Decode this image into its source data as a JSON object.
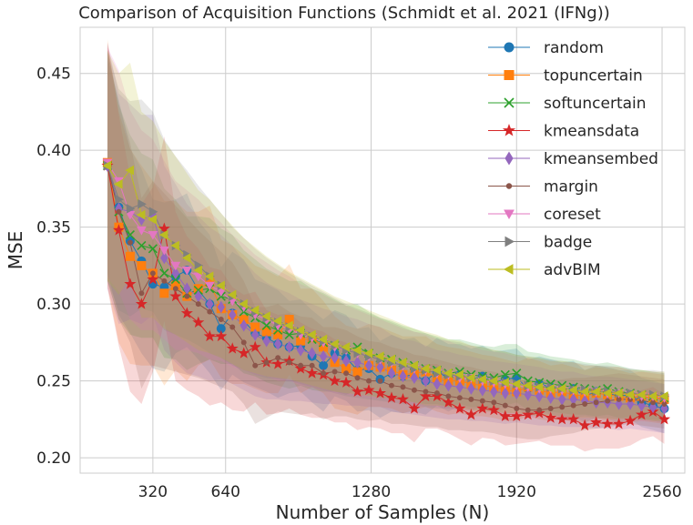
{
  "chart_data": {
    "type": "line",
    "title": "Comparison of Acquisition Functions (Schmidt et al. 2021 (IFNg))",
    "xlabel": "Number of Samples (N)",
    "ylabel": "MSE",
    "xlim": [
      0,
      2660
    ],
    "ylim": [
      0.19,
      0.48
    ],
    "xticks": [
      320,
      640,
      1280,
      1920,
      2560
    ],
    "xtick_labels": [
      "320",
      "640",
      "1280",
      "1920",
      "2560"
    ],
    "yticks": [
      0.2,
      0.25,
      0.3,
      0.35,
      0.4,
      0.45
    ],
    "ytick_labels": [
      "0.20",
      "0.25",
      "0.30",
      "0.35",
      "0.40",
      "0.45"
    ],
    "grid": true,
    "legend_position": "top-right",
    "x": [
      120,
      170,
      220,
      270,
      320,
      370,
      420,
      470,
      520,
      570,
      620,
      670,
      720,
      770,
      820,
      870,
      920,
      970,
      1020,
      1070,
      1120,
      1170,
      1220,
      1270,
      1320,
      1370,
      1420,
      1470,
      1520,
      1570,
      1620,
      1670,
      1720,
      1770,
      1820,
      1870,
      1920,
      1970,
      2020,
      2070,
      2120,
      2170,
      2220,
      2270,
      2320,
      2370,
      2420,
      2470,
      2520,
      2570
    ],
    "series": [
      {
        "name": "random",
        "color": "#1f77b4",
        "marker": "circle",
        "values": [
          0.39,
          0.363,
          0.341,
          0.328,
          0.313,
          0.311,
          0.318,
          0.322,
          0.309,
          0.3,
          0.284,
          0.294,
          0.289,
          0.281,
          0.278,
          0.274,
          0.272,
          0.273,
          0.266,
          0.26,
          0.268,
          0.265,
          0.257,
          0.258,
          0.251,
          0.255,
          0.253,
          0.254,
          0.25,
          0.256,
          0.252,
          0.254,
          0.251,
          0.253,
          0.249,
          0.251,
          0.252,
          0.245,
          0.248,
          0.246,
          0.244,
          0.245,
          0.24,
          0.243,
          0.242,
          0.24,
          0.241,
          0.236,
          0.234,
          0.232
        ],
        "band": [
          0.07,
          0.07,
          0.06,
          0.06,
          0.055,
          0.055,
          0.05,
          0.05,
          0.045,
          0.045,
          0.04,
          0.04,
          0.04,
          0.035,
          0.035,
          0.035,
          0.03,
          0.03,
          0.03,
          0.03,
          0.028,
          0.028,
          0.027,
          0.027,
          0.025,
          0.025,
          0.024,
          0.024,
          0.022,
          0.022,
          0.022,
          0.02,
          0.02,
          0.02,
          0.02,
          0.019,
          0.019,
          0.019,
          0.018,
          0.018,
          0.018,
          0.018,
          0.017,
          0.017,
          0.017,
          0.017,
          0.016,
          0.016,
          0.016,
          0.016
        ]
      },
      {
        "name": "topuncertain",
        "color": "#ff7f0e",
        "marker": "square",
        "values": [
          0.392,
          0.35,
          0.331,
          0.325,
          0.32,
          0.307,
          0.312,
          0.305,
          0.31,
          0.314,
          0.297,
          0.293,
          0.29,
          0.285,
          0.282,
          0.28,
          0.29,
          0.276,
          0.278,
          0.272,
          0.262,
          0.258,
          0.256,
          0.26,
          0.259,
          0.257,
          0.254,
          0.255,
          0.256,
          0.252,
          0.25,
          0.25,
          0.248,
          0.247,
          0.246,
          0.244,
          0.243,
          0.246,
          0.244,
          0.242,
          0.243,
          0.241,
          0.24,
          0.242,
          0.241,
          0.24,
          0.239,
          0.24,
          0.239,
          0.238
        ],
        "band": [
          0.08,
          0.075,
          0.07,
          0.065,
          0.06,
          0.06,
          0.055,
          0.055,
          0.05,
          0.05,
          0.045,
          0.045,
          0.042,
          0.04,
          0.04,
          0.038,
          0.036,
          0.034,
          0.032,
          0.03,
          0.03,
          0.028,
          0.028,
          0.027,
          0.026,
          0.025,
          0.025,
          0.024,
          0.023,
          0.022,
          0.022,
          0.021,
          0.021,
          0.02,
          0.02,
          0.02,
          0.019,
          0.019,
          0.019,
          0.018,
          0.018,
          0.018,
          0.017,
          0.017,
          0.017,
          0.017,
          0.016,
          0.016,
          0.016,
          0.016
        ]
      },
      {
        "name": "softuncertain",
        "color": "#2ca02c",
        "marker": "x",
        "values": [
          0.39,
          0.36,
          0.345,
          0.338,
          0.336,
          0.32,
          0.316,
          0.307,
          0.309,
          0.31,
          0.305,
          0.303,
          0.295,
          0.291,
          0.286,
          0.283,
          0.28,
          0.281,
          0.277,
          0.275,
          0.273,
          0.27,
          0.272,
          0.268,
          0.265,
          0.264,
          0.262,
          0.26,
          0.258,
          0.257,
          0.255,
          0.256,
          0.254,
          0.253,
          0.252,
          0.254,
          0.255,
          0.25,
          0.249,
          0.248,
          0.247,
          0.246,
          0.245,
          0.244,
          0.245,
          0.243,
          0.242,
          0.241,
          0.24,
          0.239
        ],
        "band": [
          0.075,
          0.07,
          0.065,
          0.06,
          0.058,
          0.055,
          0.052,
          0.05,
          0.048,
          0.046,
          0.044,
          0.042,
          0.04,
          0.038,
          0.037,
          0.036,
          0.035,
          0.034,
          0.033,
          0.032,
          0.03,
          0.029,
          0.028,
          0.027,
          0.026,
          0.025,
          0.024,
          0.024,
          0.023,
          0.022,
          0.022,
          0.021,
          0.021,
          0.02,
          0.02,
          0.02,
          0.019,
          0.019,
          0.019,
          0.018,
          0.018,
          0.018,
          0.017,
          0.017,
          0.017,
          0.017,
          0.016,
          0.016,
          0.016,
          0.016
        ]
      },
      {
        "name": "kmeansdata",
        "color": "#d62728",
        "marker": "star",
        "values": [
          0.39,
          0.348,
          0.313,
          0.3,
          0.316,
          0.349,
          0.305,
          0.294,
          0.288,
          0.279,
          0.279,
          0.271,
          0.268,
          0.272,
          0.262,
          0.261,
          0.263,
          0.258,
          0.255,
          0.254,
          0.25,
          0.249,
          0.243,
          0.244,
          0.242,
          0.239,
          0.238,
          0.232,
          0.24,
          0.24,
          0.236,
          0.232,
          0.228,
          0.232,
          0.231,
          0.227,
          0.227,
          0.228,
          0.229,
          0.226,
          0.225,
          0.225,
          0.221,
          0.223,
          0.222,
          0.222,
          0.224,
          0.228,
          0.23,
          0.225
        ],
        "band": [
          0.08,
          0.075,
          0.07,
          0.065,
          0.06,
          0.06,
          0.055,
          0.05,
          0.048,
          0.045,
          0.043,
          0.04,
          0.038,
          0.036,
          0.034,
          0.032,
          0.031,
          0.03,
          0.029,
          0.028,
          0.027,
          0.026,
          0.025,
          0.024,
          0.023,
          0.023,
          0.022,
          0.022,
          0.021,
          0.021,
          0.02,
          0.02,
          0.02,
          0.019,
          0.019,
          0.019,
          0.018,
          0.018,
          0.018,
          0.018,
          0.017,
          0.017,
          0.017,
          0.017,
          0.016,
          0.016,
          0.016,
          0.016,
          0.016,
          0.016
        ]
      },
      {
        "name": "kmeansembed",
        "color": "#9467bd",
        "marker": "diamond",
        "values": [
          0.39,
          0.362,
          0.36,
          0.355,
          0.358,
          0.33,
          0.32,
          0.31,
          0.305,
          0.3,
          0.298,
          0.293,
          0.286,
          0.28,
          0.276,
          0.274,
          0.272,
          0.27,
          0.268,
          0.266,
          0.265,
          0.263,
          0.262,
          0.26,
          0.259,
          0.255,
          0.253,
          0.252,
          0.25,
          0.248,
          0.247,
          0.246,
          0.245,
          0.244,
          0.243,
          0.242,
          0.242,
          0.241,
          0.24,
          0.239,
          0.238,
          0.238,
          0.237,
          0.236,
          0.236,
          0.235,
          0.235,
          0.234,
          0.233,
          0.232
        ],
        "band": [
          0.08,
          0.075,
          0.07,
          0.068,
          0.065,
          0.06,
          0.058,
          0.055,
          0.052,
          0.05,
          0.047,
          0.045,
          0.042,
          0.04,
          0.038,
          0.036,
          0.035,
          0.033,
          0.032,
          0.031,
          0.03,
          0.029,
          0.028,
          0.027,
          0.026,
          0.025,
          0.024,
          0.024,
          0.023,
          0.022,
          0.022,
          0.021,
          0.021,
          0.02,
          0.02,
          0.02,
          0.019,
          0.019,
          0.019,
          0.018,
          0.018,
          0.018,
          0.017,
          0.017,
          0.017,
          0.017,
          0.016,
          0.016,
          0.016,
          0.016
        ]
      },
      {
        "name": "margin",
        "color": "#8c564b",
        "marker": "dot",
        "values": [
          0.39,
          0.36,
          0.34,
          0.307,
          0.32,
          0.315,
          0.31,
          0.305,
          0.3,
          0.295,
          0.29,
          0.285,
          0.275,
          0.26,
          0.262,
          0.265,
          0.262,
          0.26,
          0.26,
          0.255,
          0.256,
          0.255,
          0.252,
          0.25,
          0.25,
          0.247,
          0.246,
          0.244,
          0.243,
          0.242,
          0.24,
          0.239,
          0.238,
          0.237,
          0.236,
          0.234,
          0.232,
          0.231,
          0.231,
          0.232,
          0.233,
          0.234,
          0.235,
          0.236,
          0.237,
          0.238,
          0.238,
          0.237,
          0.236,
          0.235
        ],
        "band": [
          0.075,
          0.07,
          0.065,
          0.062,
          0.06,
          0.057,
          0.054,
          0.051,
          0.048,
          0.046,
          0.044,
          0.042,
          0.04,
          0.038,
          0.036,
          0.035,
          0.033,
          0.032,
          0.031,
          0.03,
          0.029,
          0.028,
          0.027,
          0.026,
          0.025,
          0.025,
          0.024,
          0.023,
          0.023,
          0.022,
          0.022,
          0.021,
          0.021,
          0.02,
          0.02,
          0.02,
          0.019,
          0.019,
          0.019,
          0.018,
          0.018,
          0.018,
          0.017,
          0.017,
          0.017,
          0.017,
          0.016,
          0.016,
          0.016,
          0.016
        ]
      },
      {
        "name": "coreset",
        "color": "#e377c2",
        "marker": "triangle-down",
        "values": [
          0.392,
          0.38,
          0.358,
          0.348,
          0.345,
          0.335,
          0.325,
          0.322,
          0.318,
          0.312,
          0.308,
          0.302,
          0.298,
          0.293,
          0.29,
          0.286,
          0.284,
          0.28,
          0.278,
          0.275,
          0.272,
          0.27,
          0.268,
          0.266,
          0.264,
          0.262,
          0.26,
          0.258,
          0.257,
          0.255,
          0.254,
          0.252,
          0.252,
          0.25,
          0.249,
          0.248,
          0.247,
          0.246,
          0.245,
          0.245,
          0.244,
          0.244,
          0.243,
          0.243,
          0.242,
          0.242,
          0.241,
          0.24,
          0.24,
          0.239
        ],
        "band": [
          0.075,
          0.072,
          0.068,
          0.065,
          0.062,
          0.058,
          0.055,
          0.052,
          0.05,
          0.048,
          0.045,
          0.043,
          0.041,
          0.039,
          0.037,
          0.036,
          0.034,
          0.033,
          0.032,
          0.031,
          0.03,
          0.029,
          0.028,
          0.027,
          0.026,
          0.025,
          0.024,
          0.024,
          0.023,
          0.022,
          0.022,
          0.021,
          0.021,
          0.02,
          0.02,
          0.02,
          0.019,
          0.019,
          0.019,
          0.018,
          0.018,
          0.018,
          0.017,
          0.017,
          0.017,
          0.017,
          0.016,
          0.016,
          0.016,
          0.016
        ]
      },
      {
        "name": "badge",
        "color": "#7f7f7f",
        "marker": "triangle-right",
        "values": [
          0.39,
          0.368,
          0.362,
          0.365,
          0.36,
          0.345,
          0.338,
          0.332,
          0.325,
          0.318,
          0.312,
          0.305,
          0.3,
          0.295,
          0.291,
          0.288,
          0.285,
          0.282,
          0.279,
          0.276,
          0.273,
          0.27,
          0.268,
          0.266,
          0.264,
          0.262,
          0.26,
          0.258,
          0.257,
          0.255,
          0.254,
          0.253,
          0.252,
          0.251,
          0.25,
          0.249,
          0.248,
          0.247,
          0.246,
          0.246,
          0.245,
          0.244,
          0.244,
          0.243,
          0.243,
          0.242,
          0.242,
          0.241,
          0.241,
          0.24
        ],
        "band": [
          0.075,
          0.072,
          0.07,
          0.068,
          0.065,
          0.062,
          0.058,
          0.055,
          0.052,
          0.05,
          0.047,
          0.045,
          0.043,
          0.041,
          0.039,
          0.037,
          0.035,
          0.034,
          0.033,
          0.032,
          0.031,
          0.03,
          0.029,
          0.028,
          0.027,
          0.026,
          0.025,
          0.024,
          0.024,
          0.023,
          0.022,
          0.022,
          0.021,
          0.021,
          0.02,
          0.02,
          0.019,
          0.019,
          0.019,
          0.018,
          0.018,
          0.018,
          0.017,
          0.017,
          0.017,
          0.017,
          0.016,
          0.016,
          0.016,
          0.016
        ]
      },
      {
        "name": "advBIM",
        "color": "#bcbd22",
        "marker": "triangle-left",
        "values": [
          0.39,
          0.378,
          0.387,
          0.358,
          0.355,
          0.345,
          0.338,
          0.33,
          0.322,
          0.318,
          0.312,
          0.306,
          0.3,
          0.296,
          0.292,
          0.289,
          0.286,
          0.283,
          0.28,
          0.277,
          0.274,
          0.272,
          0.27,
          0.268,
          0.266,
          0.264,
          0.262,
          0.26,
          0.258,
          0.257,
          0.255,
          0.254,
          0.252,
          0.251,
          0.25,
          0.249,
          0.248,
          0.247,
          0.246,
          0.245,
          0.245,
          0.244,
          0.243,
          0.243,
          0.242,
          0.242,
          0.241,
          0.241,
          0.24,
          0.24
        ],
        "band": [
          0.075,
          0.072,
          0.07,
          0.067,
          0.064,
          0.061,
          0.058,
          0.055,
          0.052,
          0.05,
          0.047,
          0.045,
          0.043,
          0.041,
          0.039,
          0.037,
          0.035,
          0.034,
          0.033,
          0.032,
          0.031,
          0.03,
          0.029,
          0.028,
          0.027,
          0.026,
          0.025,
          0.024,
          0.024,
          0.023,
          0.022,
          0.022,
          0.021,
          0.021,
          0.02,
          0.02,
          0.019,
          0.019,
          0.019,
          0.018,
          0.018,
          0.018,
          0.017,
          0.017,
          0.017,
          0.017,
          0.016,
          0.016,
          0.016,
          0.016
        ]
      }
    ]
  }
}
